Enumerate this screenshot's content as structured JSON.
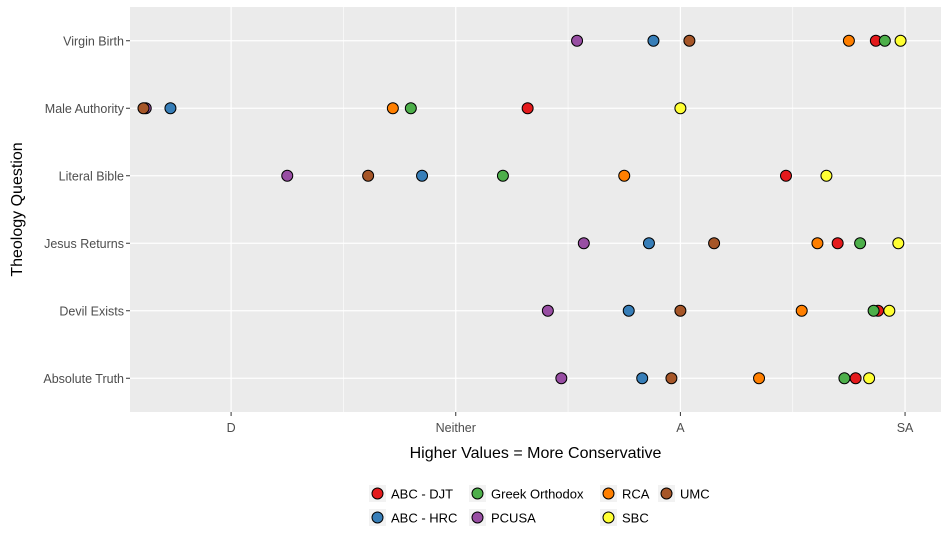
{
  "chart_data": {
    "type": "scatter",
    "title": "",
    "xlabel": "Higher Values = More Conservative",
    "ylabel": "Theology Question",
    "xlim": [
      1.55,
      5.16
    ],
    "x_ticks": [
      {
        "value": 2,
        "label": "D"
      },
      {
        "value": 3,
        "label": "Neither"
      },
      {
        "value": 4,
        "label": "A"
      },
      {
        "value": 5,
        "label": "SA"
      }
    ],
    "categories": [
      "Virgin Birth",
      "Male Authority",
      "Literal Bible",
      "Jesus Returns",
      "Devil Exists",
      "Absolute Truth"
    ],
    "grid": true,
    "legend_position": "bottom",
    "series": [
      {
        "name": "ABC - DJT",
        "color": "#e41a1c",
        "values": [
          4.87,
          3.32,
          4.47,
          4.7,
          4.88,
          4.78
        ]
      },
      {
        "name": "ABC - HRC",
        "color": "#377eb8",
        "values": [
          3.88,
          1.73,
          2.85,
          3.86,
          3.77,
          3.83
        ]
      },
      {
        "name": "Greek Orthodox",
        "color": "#4daf4a",
        "values": [
          4.91,
          2.8,
          3.21,
          4.8,
          4.86,
          4.73
        ]
      },
      {
        "name": "PCUSA",
        "color": "#984ea3",
        "values": [
          3.54,
          1.62,
          2.25,
          3.57,
          3.41,
          3.47
        ]
      },
      {
        "name": "RCA",
        "color": "#ff7f00",
        "values": [
          4.75,
          2.72,
          3.75,
          4.61,
          4.54,
          4.35
        ]
      },
      {
        "name": "SBC",
        "color": "#ffff33",
        "values": [
          4.98,
          4.0,
          4.65,
          4.97,
          4.93,
          4.84
        ]
      },
      {
        "name": "UMC",
        "color": "#a65628",
        "values": [
          4.04,
          1.61,
          2.61,
          4.15,
          4.0,
          3.96
        ]
      }
    ]
  }
}
